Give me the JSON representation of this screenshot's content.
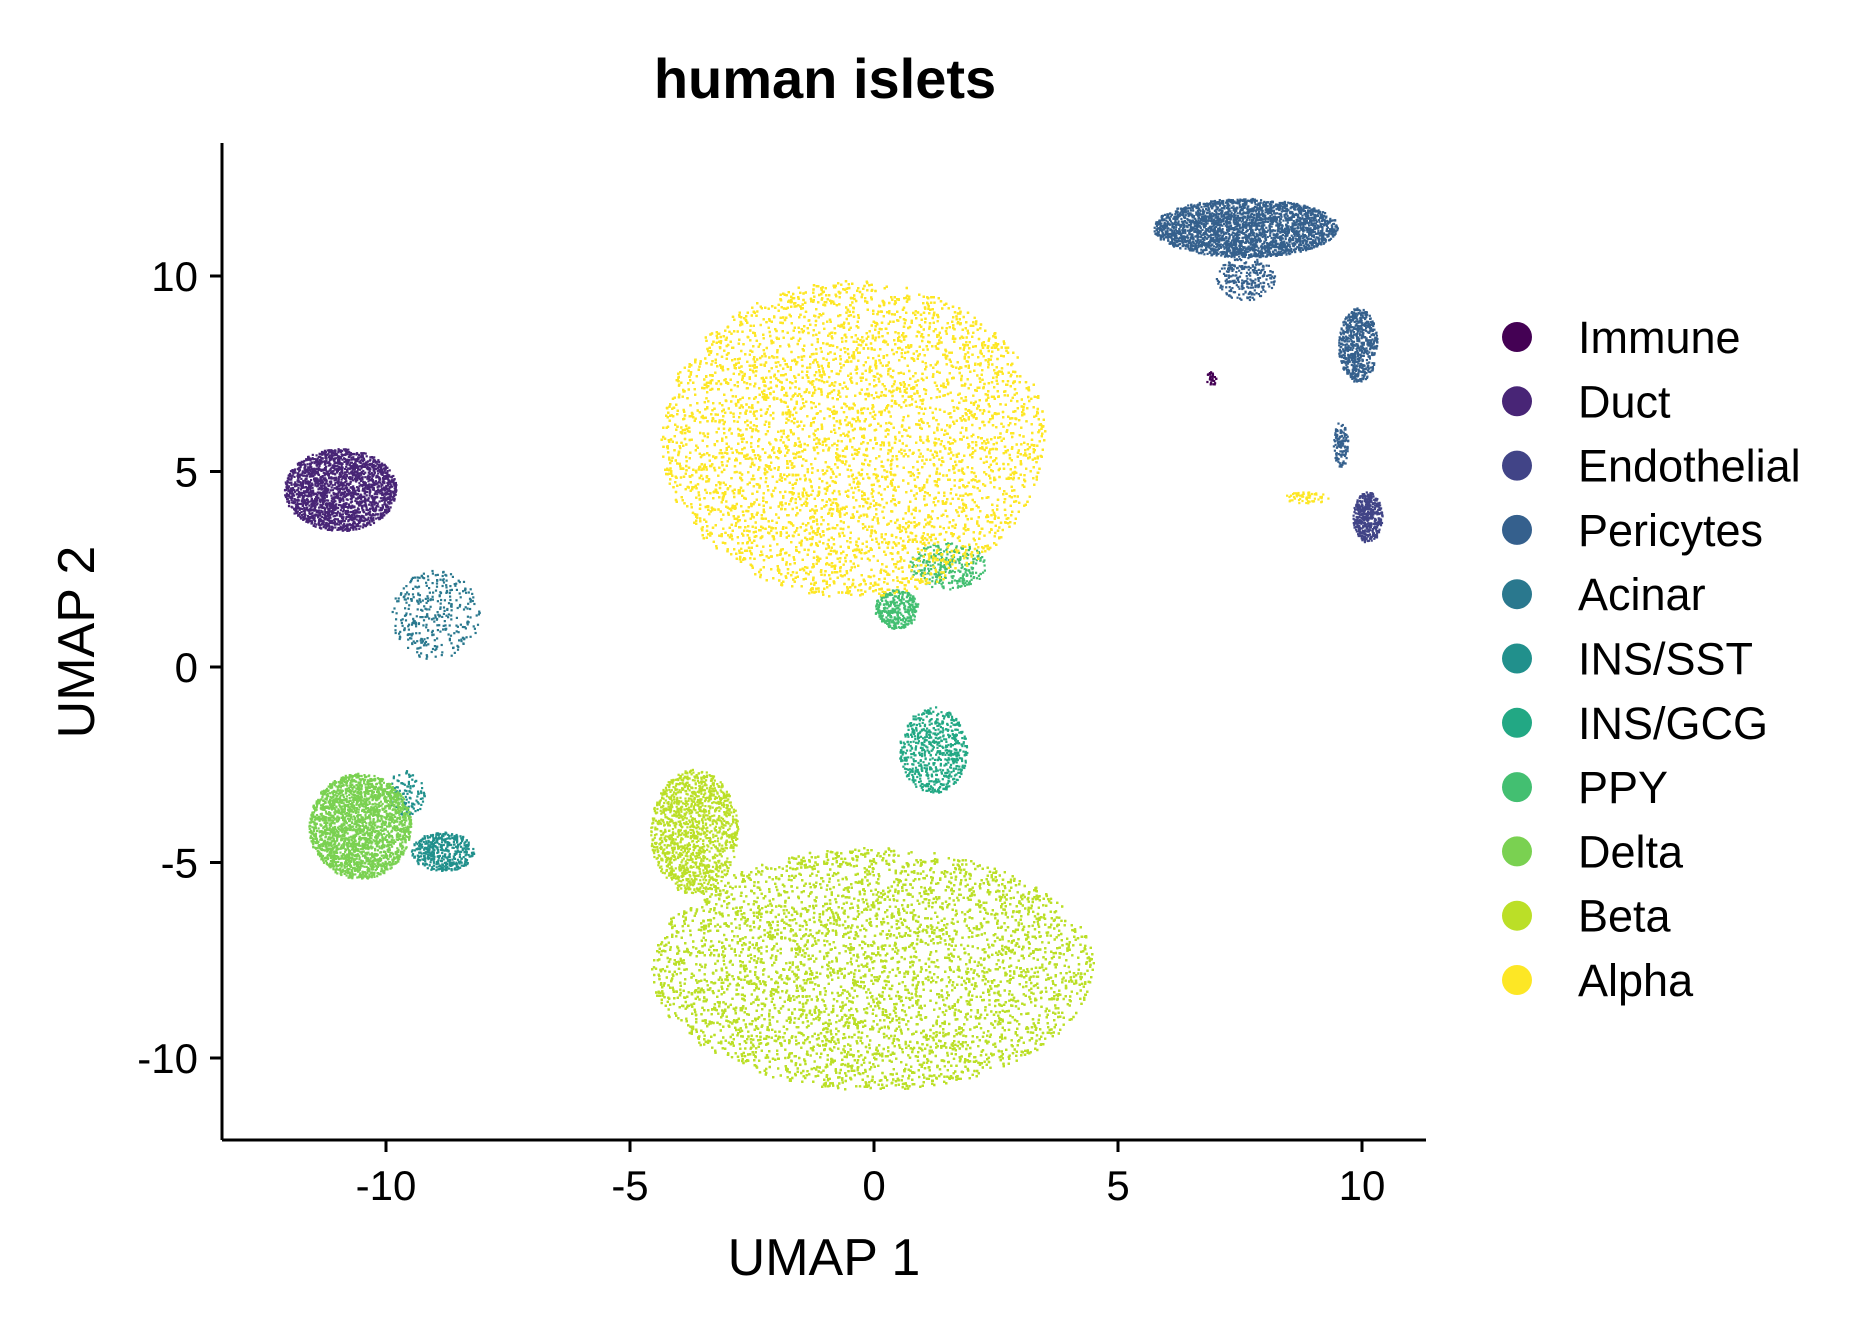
{
  "chart_data": {
    "type": "scatter",
    "title": "human islets",
    "xlabel": "UMAP 1",
    "ylabel": "UMAP 2",
    "xlim": [
      -13.2,
      11.5
    ],
    "ylim": [
      -12.0,
      13.3
    ],
    "xticks": [
      -10,
      -5,
      0,
      5,
      10
    ],
    "yticks": [
      -10,
      -5,
      0,
      5,
      10
    ],
    "xtick_labels": [
      "-10",
      "-5",
      "0",
      "5",
      "10"
    ],
    "ytick_labels": [
      "-10",
      "-5",
      "0",
      "5",
      "10"
    ],
    "grid": false,
    "legend_position": "right",
    "series": [
      {
        "name": "Immune",
        "color": "#440154",
        "clusters": [
          {
            "x": [
              6.8,
              7.0
            ],
            "y": [
              7.2,
              7.6
            ],
            "n": 30
          }
        ]
      },
      {
        "name": "Duct",
        "color": "#482576",
        "clusters": [
          {
            "x": [
              -12.1,
              -9.8
            ],
            "y": [
              3.5,
              5.6
            ],
            "n": 2200
          }
        ]
      },
      {
        "name": "Endothelial",
        "color": "#414487",
        "clusters": [
          {
            "x": [
              9.8,
              10.4
            ],
            "y": [
              3.2,
              4.5
            ],
            "n": 450
          }
        ]
      },
      {
        "name": "Pericytes",
        "color": "#35608D",
        "clusters": [
          {
            "x": [
              5.7,
              9.5
            ],
            "y": [
              10.5,
              12.0
            ],
            "n": 2800
          },
          {
            "x": [
              7.0,
              8.2
            ],
            "y": [
              9.4,
              10.5
            ],
            "n": 250
          },
          {
            "x": [
              9.5,
              10.3
            ],
            "y": [
              7.3,
              9.2
            ],
            "n": 650
          },
          {
            "x": [
              9.4,
              9.7
            ],
            "y": [
              5.1,
              6.3
            ],
            "n": 120
          }
        ]
      },
      {
        "name": "Acinar",
        "color": "#2A788E",
        "clusters": [
          {
            "x": [
              -9.9,
              -8.1
            ],
            "y": [
              0.2,
              2.5
            ],
            "n": 350
          }
        ]
      },
      {
        "name": "INS/SST",
        "color": "#21908C",
        "clusters": [
          {
            "x": [
              -9.5,
              -8.2
            ],
            "y": [
              -5.2,
              -4.2
            ],
            "n": 450
          },
          {
            "x": [
              -10.0,
              -9.2
            ],
            "y": [
              -3.8,
              -2.6
            ],
            "n": 120
          }
        ]
      },
      {
        "name": "INS/GCG",
        "color": "#22A884",
        "clusters": [
          {
            "x": [
              0.5,
              1.9
            ],
            "y": [
              -3.2,
              -1.0
            ],
            "n": 650
          }
        ]
      },
      {
        "name": "PPY",
        "color": "#43BF71",
        "clusters": [
          {
            "x": [
              0.0,
              0.9
            ],
            "y": [
              1.0,
              2.0
            ],
            "n": 350
          },
          {
            "x": [
              0.7,
              2.3
            ],
            "y": [
              2.0,
              3.2
            ],
            "n": 300
          }
        ]
      },
      {
        "name": "Delta",
        "color": "#7AD151",
        "clusters": [
          {
            "x": [
              -11.6,
              -9.5
            ],
            "y": [
              -5.4,
              -2.7
            ],
            "n": 2400
          }
        ]
      },
      {
        "name": "Beta",
        "color": "#BBDF27",
        "clusters": [
          {
            "x": [
              -4.6,
              4.5
            ],
            "y": [
              -10.8,
              -4.6
            ],
            "n": 15000
          },
          {
            "x": [
              -4.6,
              -2.8
            ],
            "y": [
              -5.8,
              -2.6
            ],
            "n": 1400
          }
        ]
      },
      {
        "name": "Alpha",
        "color": "#FDE725",
        "clusters": [
          {
            "x": [
              -4.4,
              3.5
            ],
            "y": [
              1.8,
              9.9
            ],
            "n": 16000
          },
          {
            "x": [
              8.4,
              9.3
            ],
            "y": [
              4.2,
              4.5
            ],
            "n": 60
          }
        ]
      }
    ]
  }
}
